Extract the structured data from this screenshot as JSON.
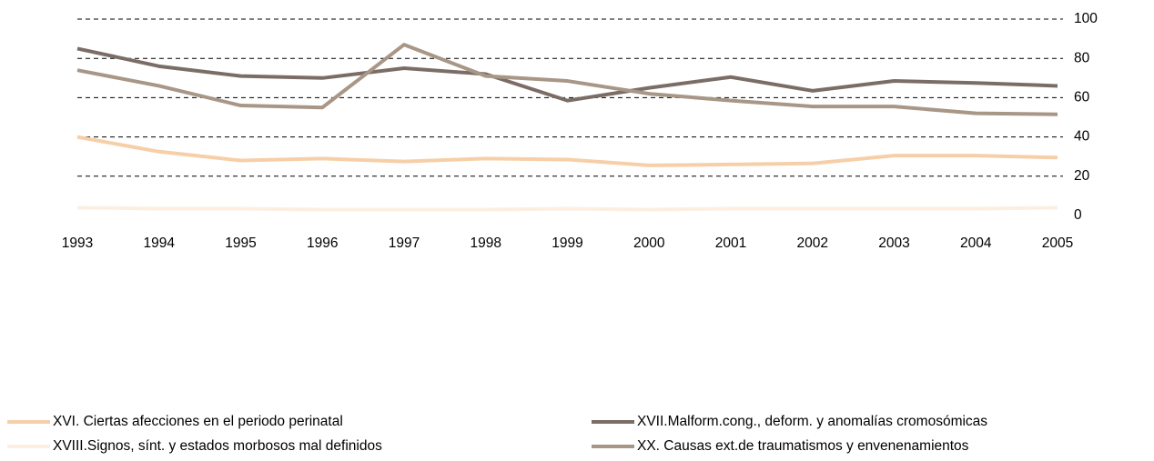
{
  "chart_data": {
    "type": "line",
    "categories": [
      "1993",
      "1994",
      "1995",
      "1996",
      "1997",
      "1998",
      "1999",
      "2000",
      "2001",
      "2002",
      "2003",
      "2004",
      "2005"
    ],
    "series": [
      {
        "name": "XVI. Ciertas afecciones en el periodo perinatal",
        "color": "#f6cfa9",
        "values": [
          40,
          32.5,
          28,
          29,
          27.5,
          29,
          28.5,
          25.5,
          26,
          26.5,
          30.5,
          30.5,
          29.5
        ]
      },
      {
        "name": "XVII.Malform.cong., deform. y anomalías cromosómicas",
        "color": "#7b6d66",
        "values": [
          85,
          76,
          71,
          70,
          75,
          72,
          58.5,
          65,
          70.5,
          63.5,
          68.5,
          67.5,
          66
        ]
      },
      {
        "name": "XVIII.Signos, sínt. y estados morbosos mal definidos",
        "color": "#fcefe2",
        "values": [
          4,
          3.5,
          3.5,
          3,
          3,
          3,
          3.5,
          3,
          3.5,
          3.5,
          3.5,
          3.5,
          4
        ]
      },
      {
        "name": "XX. Causas ext.de traumatismos y envenenamientos",
        "color": "#a89686",
        "values": [
          74,
          66,
          56,
          55,
          87,
          71,
          68.5,
          62,
          58.5,
          55.5,
          55.5,
          52,
          51.5
        ]
      }
    ],
    "ylim": [
      0,
      100
    ],
    "yticks": [
      0,
      20,
      40,
      60,
      80,
      100
    ],
    "grid": true
  }
}
